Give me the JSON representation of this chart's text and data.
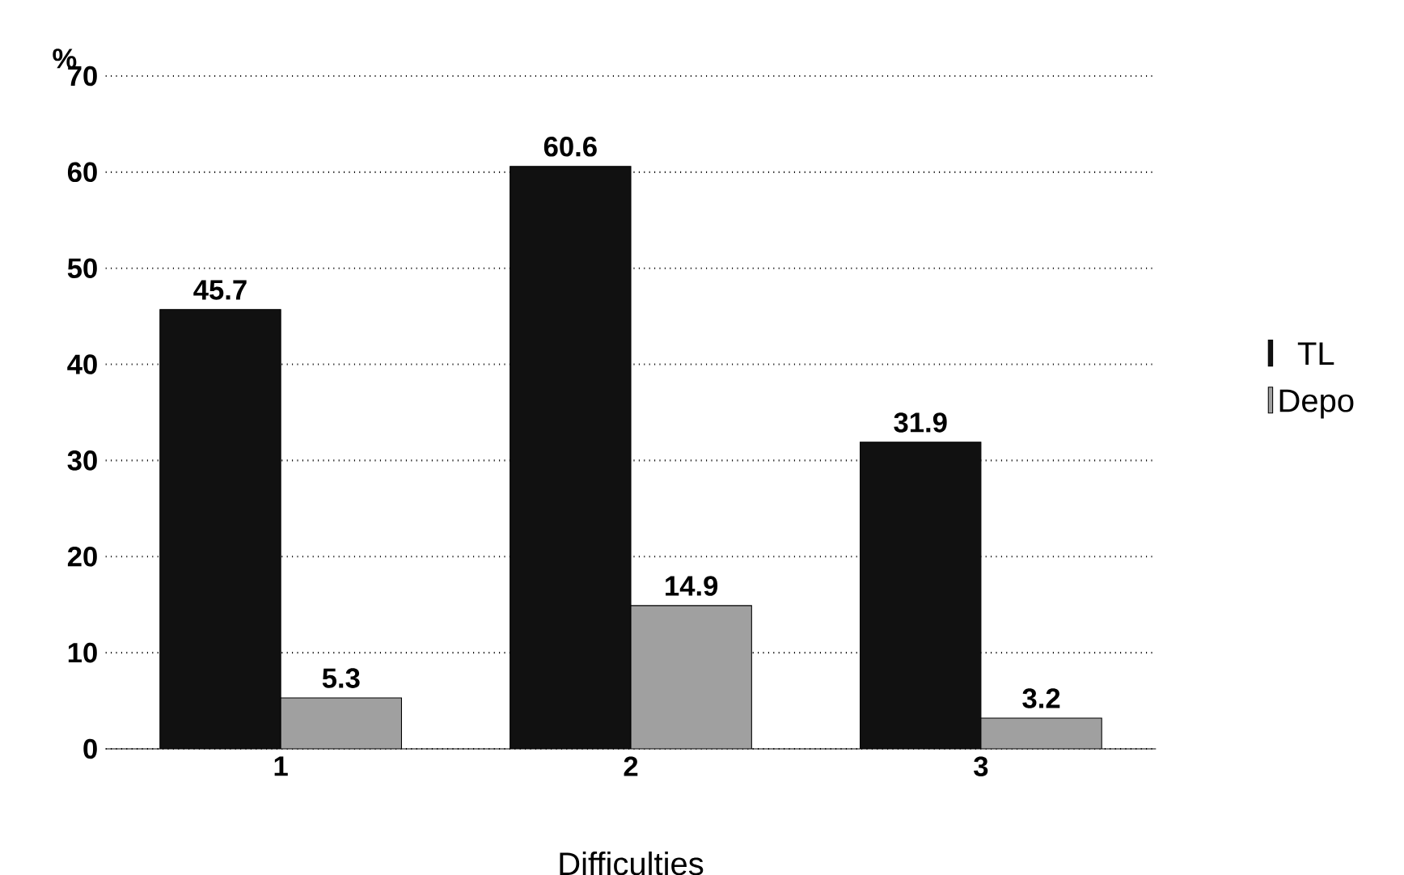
{
  "chart_data": {
    "type": "bar",
    "xlabel": "Difficulties",
    "ylabel": "%",
    "categories": [
      "1",
      "2",
      "3"
    ],
    "series": [
      {
        "name": "TL",
        "color": "#111111",
        "values": [
          45.7,
          60.6,
          31.9
        ]
      },
      {
        "name": "Depo",
        "color": "#a0a0a0",
        "values": [
          5.3,
          14.9,
          3.2
        ]
      }
    ],
    "ylim": [
      0,
      70
    ],
    "yticks": [
      0,
      10,
      20,
      30,
      40,
      50,
      60,
      70
    ],
    "grid": "y",
    "legend": "right",
    "data_labels": true
  }
}
